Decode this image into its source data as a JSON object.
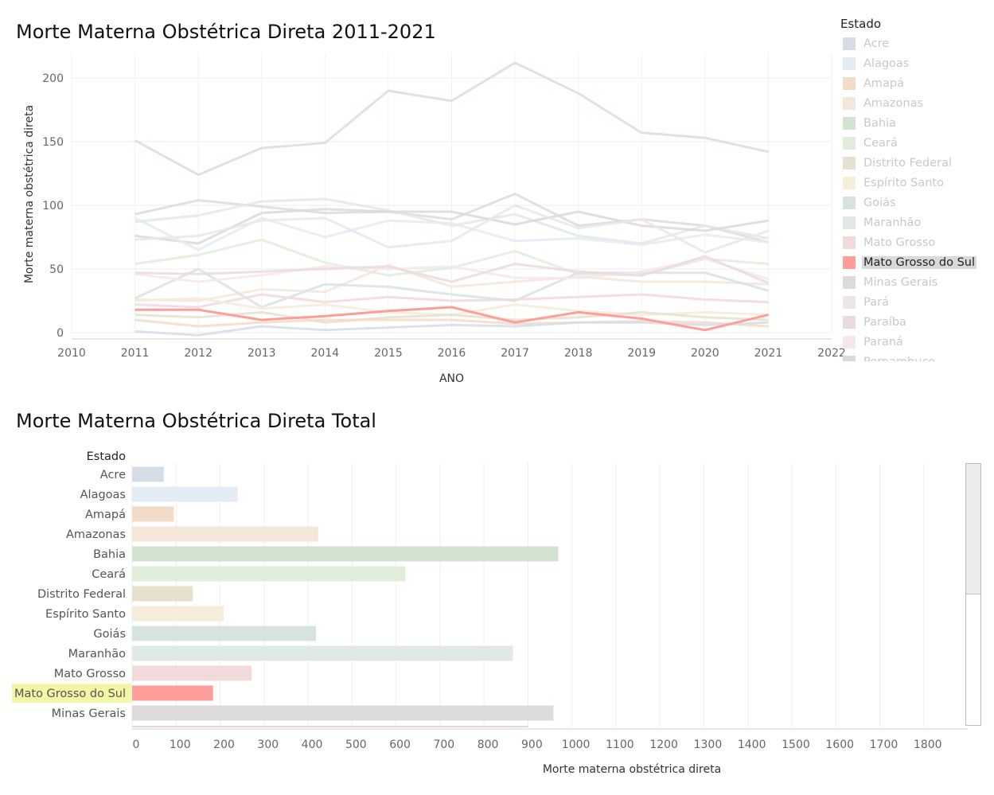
{
  "line_chart": {
    "title": "Morte Materna Obstétrica Direta 2011-2021",
    "xlabel": "ANO",
    "ylabel": "Morte materna obstétrica direta"
  },
  "bar_chart": {
    "title": "Morte Materna Obstétrica Direta Total",
    "category_header": "Estado",
    "xlabel": "Morte materna obstétrica direta"
  },
  "legend": {
    "title": "Estado",
    "highlighted": "Mato Grosso do Sul",
    "items": [
      {
        "label": "Acre",
        "color": "#d5dde6"
      },
      {
        "label": "Alagoas",
        "color": "#e3ebf3"
      },
      {
        "label": "Amapá",
        "color": "#f2dcc8"
      },
      {
        "label": "Amazonas",
        "color": "#f5e6da"
      },
      {
        "label": "Bahia",
        "color": "#d4e3d1"
      },
      {
        "label": "Ceará",
        "color": "#e0edd9"
      },
      {
        "label": "Distrito Federal",
        "color": "#e6e0cf"
      },
      {
        "label": "Espírito Santo",
        "color": "#f5ecd9"
      },
      {
        "label": "Goiás",
        "color": "#d7e3e0"
      },
      {
        "label": "Maranhão",
        "color": "#e0e9e6"
      },
      {
        "label": "Mato Grosso",
        "color": "#f2d9da"
      },
      {
        "label": "Mato Grosso do Sul",
        "color": "#ff9d98"
      },
      {
        "label": "Minas Gerais",
        "color": "#dedad9"
      },
      {
        "label": "Pará",
        "color": "#ebe6e4"
      },
      {
        "label": "Paraíba",
        "color": "#ebd9e1"
      },
      {
        "label": "Paraná",
        "color": "#f7e6ec"
      },
      {
        "label": "Pernambuco",
        "color": "#e0d6dd"
      }
    ]
  },
  "chart_data": [
    {
      "type": "line",
      "title": "Morte Materna Obstétrica Direta 2011-2021",
      "xlabel": "ANO",
      "ylabel": "Morte materna obstétrica direta",
      "xlim": [
        2010,
        2022
      ],
      "ylim": [
        0,
        220
      ],
      "x_ticks": [
        2010,
        2011,
        2012,
        2013,
        2014,
        2015,
        2016,
        2017,
        2018,
        2019,
        2020,
        2021,
        2022
      ],
      "y_ticks": [
        0,
        50,
        100,
        150,
        200
      ],
      "grid": true,
      "highlighted_series": "Mato Grosso do Sul",
      "x": [
        2011,
        2012,
        2013,
        2014,
        2015,
        2016,
        2017,
        2018,
        2019,
        2020,
        2021
      ],
      "series": [
        {
          "name": "Bahia",
          "color": "#d4e3d1",
          "values": [
            151,
            124,
            145,
            149,
            190,
            182,
            212,
            188,
            157,
            153,
            142
          ]
        },
        {
          "name": "Minas Gerais",
          "color": "#dedad9",
          "values": [
            93,
            104,
            99,
            94,
            95,
            89,
            109,
            84,
            89,
            84,
            71
          ]
        },
        {
          "name": "Maranhão",
          "color": "#e0e9e6",
          "values": [
            87,
            92,
            103,
            105,
            96,
            84,
            93,
            76,
            70,
            84,
            74
          ]
        },
        {
          "name": "Pernambuco",
          "color": "#e0d6dd",
          "values": [
            76,
            70,
            94,
            97,
            95,
            95,
            85,
            95,
            84,
            80,
            88
          ]
        },
        {
          "name": "Ceará",
          "color": "#e0edd9",
          "values": [
            54,
            61,
            73,
            55,
            45,
            51,
            64,
            46,
            45,
            58,
            54
          ]
        },
        {
          "name": "Pará",
          "color": "#ebe6e4",
          "values": [
            73,
            76,
            88,
            90,
            67,
            72,
            100,
            82,
            89,
            63,
            80
          ]
        },
        {
          "name": "Alagoas",
          "color": "#e3ebf3",
          "values": [
            90,
            65,
            90,
            75,
            88,
            86,
            72,
            74,
            69,
            77,
            71
          ]
        },
        {
          "name": "Amazonas",
          "color": "#f5e6da",
          "values": [
            26,
            25,
            34,
            32,
            53,
            36,
            40,
            44,
            40,
            40,
            38
          ]
        },
        {
          "name": "Goiás",
          "color": "#d7e3e0",
          "values": [
            27,
            50,
            20,
            38,
            36,
            30,
            25,
            47,
            47,
            47,
            33
          ]
        },
        {
          "name": "Paraná",
          "color": "#f7e6ec",
          "values": [
            46,
            40,
            45,
            52,
            50,
            52,
            43,
            43,
            48,
            58,
            42
          ]
        },
        {
          "name": "Paraíba",
          "color": "#ebd9e1",
          "values": [
            47,
            46,
            48,
            50,
            52,
            40,
            54,
            48,
            45,
            60,
            39
          ]
        },
        {
          "name": "Mato Grosso",
          "color": "#f2d9da",
          "values": [
            22,
            20,
            30,
            24,
            28,
            25,
            26,
            28,
            30,
            26,
            24
          ]
        },
        {
          "name": "Espírito Santo",
          "color": "#f5ecd9",
          "values": [
            25,
            27,
            19,
            22,
            16,
            14,
            22,
            17,
            14,
            16,
            14
          ]
        },
        {
          "name": "Distrito Federal",
          "color": "#e6e0cf",
          "values": [
            14,
            12,
            16,
            8,
            12,
            14,
            10,
            12,
            16,
            12,
            10
          ]
        },
        {
          "name": "Amapá",
          "color": "#f2dcc8",
          "values": [
            10,
            5,
            8,
            10,
            10,
            10,
            7,
            8,
            9,
            8,
            5
          ]
        },
        {
          "name": "Acre",
          "color": "#d5dde6",
          "values": [
            1,
            -2,
            5,
            2,
            4,
            6,
            5,
            8,
            8,
            6,
            8
          ]
        },
        {
          "name": "Mato Grosso do Sul",
          "color": "#ff9d98",
          "values": [
            18,
            18,
            10,
            13,
            17,
            20,
            8,
            16,
            11,
            2,
            14
          ]
        }
      ]
    },
    {
      "type": "bar",
      "orientation": "horizontal",
      "title": "Morte Materna Obstétrica Direta Total",
      "xlabel": "Morte materna obstétrica direta",
      "category_header": "Estado",
      "xlim": [
        0,
        1900
      ],
      "x_ticks": [
        0,
        100,
        200,
        300,
        400,
        500,
        600,
        700,
        800,
        900,
        1000,
        1100,
        1200,
        1300,
        1400,
        1500,
        1600,
        1700,
        1800
      ],
      "grid": true,
      "highlighted": "Mato Grosso do Sul",
      "categories": [
        "Acre",
        "Alagoas",
        "Amapá",
        "Amazonas",
        "Bahia",
        "Ceará",
        "Distrito Federal",
        "Espírito Santo",
        "Goiás",
        "Maranhão",
        "Mato Grosso",
        "Mato Grosso do Sul",
        "Minas Gerais"
      ],
      "values": [
        72,
        240,
        95,
        423,
        969,
        621,
        138,
        208,
        418,
        866,
        272,
        184,
        958
      ],
      "colors": [
        "#d5dde6",
        "#e3ebf3",
        "#f2dcc8",
        "#f5e6da",
        "#d4e3d1",
        "#e0edd9",
        "#e6e0cf",
        "#f5ecd9",
        "#d7e3e0",
        "#e0e9e6",
        "#f2d9da",
        "#ff9d98",
        "#dedad9"
      ]
    }
  ]
}
